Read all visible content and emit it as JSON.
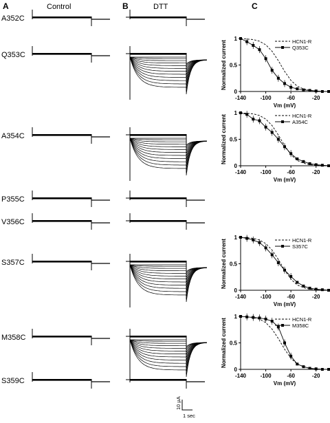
{
  "panels": {
    "a": "A",
    "b": "B",
    "c": "C"
  },
  "columns": {
    "control": "Control",
    "dtt": "DTT"
  },
  "rows": [
    {
      "label": "A352C",
      "dtt_family": false
    },
    {
      "label": "Q353C",
      "dtt_family": true,
      "plot": 0
    },
    {
      "label": "A354C",
      "dtt_family": true,
      "plot": 1
    },
    {
      "label": "P355C",
      "dtt_family": false
    },
    {
      "label": "V356C",
      "dtt_family": false
    },
    {
      "label": "S357C",
      "dtt_family": true,
      "plot": 2
    },
    {
      "label": "M358C",
      "dtt_family": true,
      "plot": 3
    },
    {
      "label": "S359C",
      "dtt_family": false
    }
  ],
  "scale_bar": {
    "current": "10 µA",
    "time": "1 sec"
  },
  "chart_data": [
    {
      "type": "line",
      "xlabel": "Vm (mV)",
      "ylabel": "Normalized current",
      "xlim": [
        -140,
        0
      ],
      "ylim": [
        0,
        1
      ],
      "xticks": [
        "-140",
        "-100",
        "-60",
        "-20"
      ],
      "yticks": [
        "0",
        "0.5",
        "1"
      ],
      "legend": "top-right",
      "series": [
        {
          "name": "HCN1-R",
          "style": "dashed",
          "x": [
            -140,
            -130,
            -120,
            -110,
            -100,
            -90,
            -80,
            -70,
            -60,
            -50,
            -40,
            -30,
            -20,
            -10,
            0
          ],
          "y": [
            1.0,
            0.99,
            0.98,
            0.95,
            0.88,
            0.76,
            0.58,
            0.38,
            0.21,
            0.1,
            0.05,
            0.02,
            0.01,
            0.0,
            0.0
          ]
        },
        {
          "name": "Q353C",
          "style": "squares",
          "x": [
            -140,
            -130,
            -120,
            -110,
            -100,
            -90,
            -80,
            -70,
            -60,
            -50,
            -40,
            -30,
            -20,
            -10,
            0
          ],
          "y": [
            1.0,
            0.94,
            0.87,
            0.79,
            0.62,
            0.4,
            0.25,
            0.15,
            0.08,
            0.05,
            0.03,
            0.02,
            0.01,
            0.0,
            0.0
          ]
        }
      ]
    },
    {
      "type": "line",
      "xlabel": "Vm (mV)",
      "ylabel": "Normalized current",
      "xlim": [
        -140,
        0
      ],
      "ylim": [
        0,
        1
      ],
      "xticks": [
        "-140",
        "-100",
        "-60",
        "-20"
      ],
      "yticks": [
        "0",
        "0.5",
        "1"
      ],
      "legend": "top-right",
      "series": [
        {
          "name": "HCN1-R",
          "style": "dashed",
          "x": [
            -140,
            -130,
            -120,
            -110,
            -100,
            -90,
            -80,
            -70,
            -60,
            -50,
            -40,
            -30,
            -20,
            -10,
            0
          ],
          "y": [
            1.0,
            0.99,
            0.98,
            0.95,
            0.88,
            0.76,
            0.58,
            0.38,
            0.21,
            0.1,
            0.05,
            0.02,
            0.01,
            0.0,
            0.0
          ]
        },
        {
          "name": "A354C",
          "style": "squares",
          "x": [
            -140,
            -130,
            -120,
            -110,
            -100,
            -90,
            -80,
            -70,
            -60,
            -50,
            -40,
            -30,
            -20,
            -10,
            0
          ],
          "y": [
            1.0,
            0.97,
            0.88,
            0.85,
            0.73,
            0.63,
            0.5,
            0.36,
            0.23,
            0.13,
            0.08,
            0.04,
            0.02,
            0.01,
            0.0
          ]
        }
      ]
    },
    {
      "type": "line",
      "xlabel": "Vm (mV)",
      "ylabel": "Normalized current",
      "xlim": [
        -140,
        0
      ],
      "ylim": [
        0,
        1
      ],
      "xticks": [
        "-140",
        "-100",
        "-60",
        "-20"
      ],
      "yticks": [
        "0",
        "0.5",
        "1"
      ],
      "legend": "top-right",
      "series": [
        {
          "name": "HCN1-R",
          "style": "dashed",
          "x": [
            -140,
            -130,
            -120,
            -110,
            -100,
            -90,
            -80,
            -70,
            -60,
            -50,
            -40,
            -30,
            -20,
            -10,
            0
          ],
          "y": [
            1.0,
            0.99,
            0.98,
            0.95,
            0.88,
            0.76,
            0.58,
            0.38,
            0.21,
            0.1,
            0.05,
            0.02,
            0.01,
            0.0,
            0.0
          ]
        },
        {
          "name": "S357C",
          "style": "squares",
          "x": [
            -140,
            -130,
            -120,
            -110,
            -100,
            -90,
            -80,
            -70,
            -60,
            -50,
            -40,
            -30,
            -20,
            -10,
            0
          ],
          "y": [
            1.0,
            0.98,
            0.95,
            0.9,
            0.8,
            0.67,
            0.52,
            0.38,
            0.26,
            0.15,
            0.08,
            0.04,
            0.02,
            0.01,
            0.0
          ]
        }
      ]
    },
    {
      "type": "line",
      "xlabel": "Vm (mV)",
      "ylabel": "Normalized current",
      "xlim": [
        -140,
        0
      ],
      "ylim": [
        0,
        1
      ],
      "xticks": [
        "-140",
        "-100",
        "-60",
        "-20"
      ],
      "yticks": [
        "0",
        "0.5",
        "1"
      ],
      "legend": "top-right",
      "series": [
        {
          "name": "HCN1-R",
          "style": "dashed",
          "x": [
            -140,
            -130,
            -120,
            -110,
            -100,
            -90,
            -80,
            -70,
            -60,
            -50,
            -40,
            -30,
            -20,
            -10,
            0
          ],
          "y": [
            1.0,
            0.99,
            0.98,
            0.95,
            0.88,
            0.76,
            0.58,
            0.38,
            0.21,
            0.1,
            0.05,
            0.02,
            0.01,
            0.0,
            0.0
          ]
        },
        {
          "name": "M358C",
          "style": "squares",
          "x": [
            -140,
            -130,
            -120,
            -110,
            -100,
            -90,
            -80,
            -70,
            -60,
            -50,
            -40,
            -30,
            -20,
            -10,
            0
          ],
          "y": [
            1.0,
            0.99,
            0.98,
            0.97,
            0.95,
            0.91,
            0.8,
            0.5,
            0.25,
            0.1,
            0.05,
            0.02,
            0.01,
            0.0,
            0.0
          ]
        }
      ]
    }
  ]
}
